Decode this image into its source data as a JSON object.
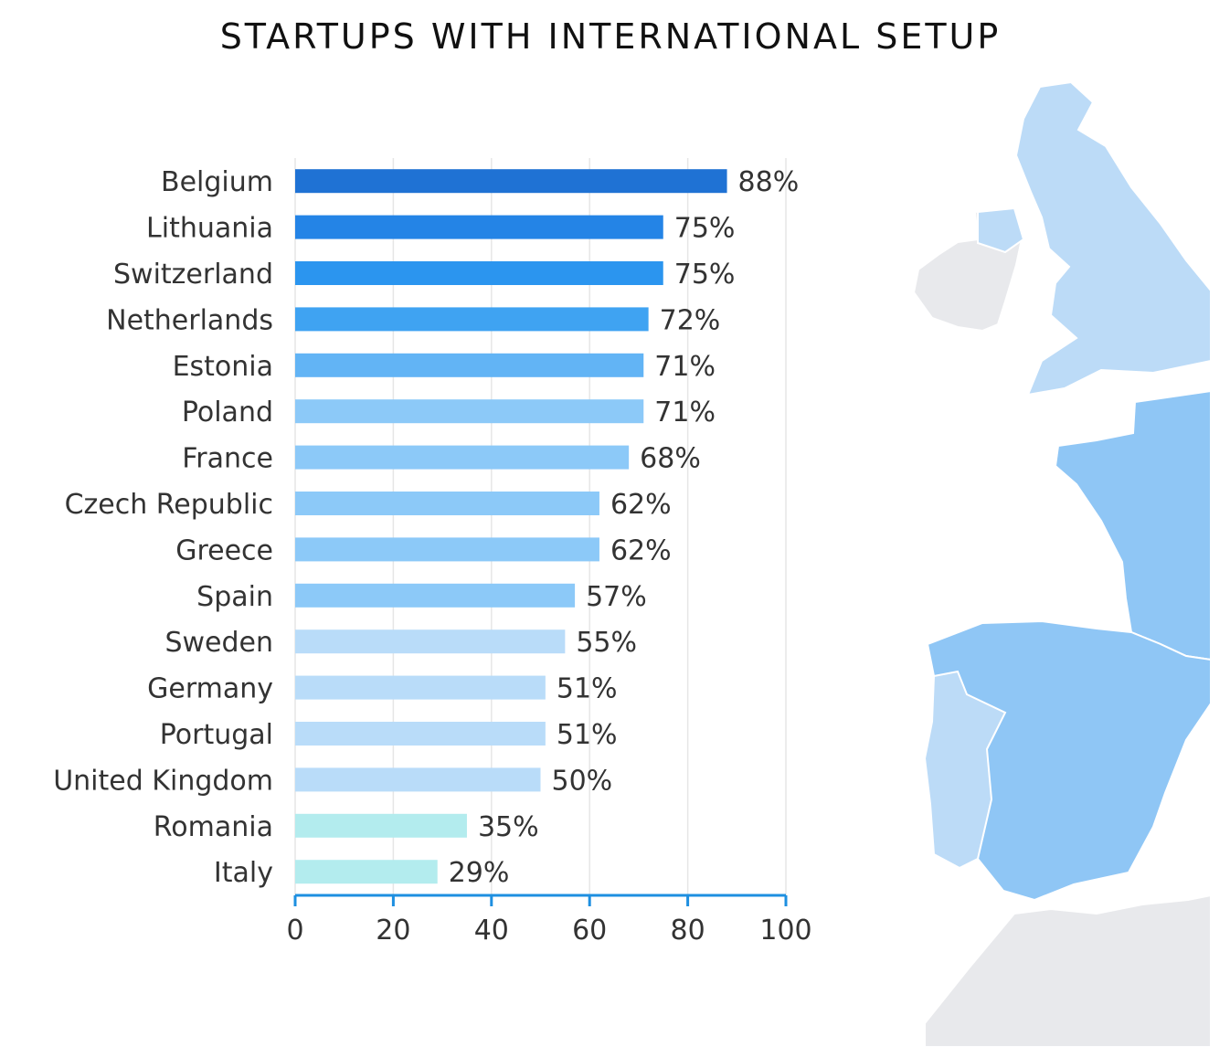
{
  "title": "STARTUPS WITH INTERNATIONAL SETUP",
  "chart_data": {
    "type": "bar",
    "orientation": "horizontal",
    "categories": [
      "Belgium",
      "Lithuania",
      "Switzerland",
      "Netherlands",
      "Estonia",
      "Poland",
      "France",
      "Czech Republic",
      "Greece",
      "Spain",
      "Sweden",
      "Germany",
      "Portugal",
      "United Kingdom",
      "Romania",
      "Italy"
    ],
    "values": [
      88,
      75,
      75,
      72,
      71,
      71,
      68,
      62,
      62,
      57,
      55,
      51,
      51,
      50,
      35,
      29
    ],
    "data_labels": [
      "88%",
      "75%",
      "75%",
      "72%",
      "71%",
      "71%",
      "68%",
      "62%",
      "62%",
      "57%",
      "55%",
      "51%",
      "51%",
      "50%",
      "35%",
      "29%"
    ],
    "bar_colors": [
      "#1f72d4",
      "#2484e6",
      "#2b95ef",
      "#3fa3f2",
      "#62b4f5",
      "#8cc9f8",
      "#8cc9f8",
      "#8cc9f8",
      "#8cc9f8",
      "#8cc9f8",
      "#b9dcf9",
      "#b9dcf9",
      "#b9dcf9",
      "#b9dcf9",
      "#b3ecee",
      "#b3ecee"
    ],
    "xlim": [
      0,
      100
    ],
    "xticks": [
      0,
      20,
      40,
      60,
      80,
      100
    ],
    "grid": true,
    "axis_color": "#1e8fe0"
  },
  "map": {
    "decorative": true,
    "colors": {
      "uk": "#bcdbf7",
      "ireland_north": "#bcdbf7",
      "ireland": "#e8e9ec",
      "france": "#8fc6f5",
      "spain": "#8fc6f5",
      "portugal": "#bcdbf7",
      "africa": "#e8e9ec"
    }
  }
}
